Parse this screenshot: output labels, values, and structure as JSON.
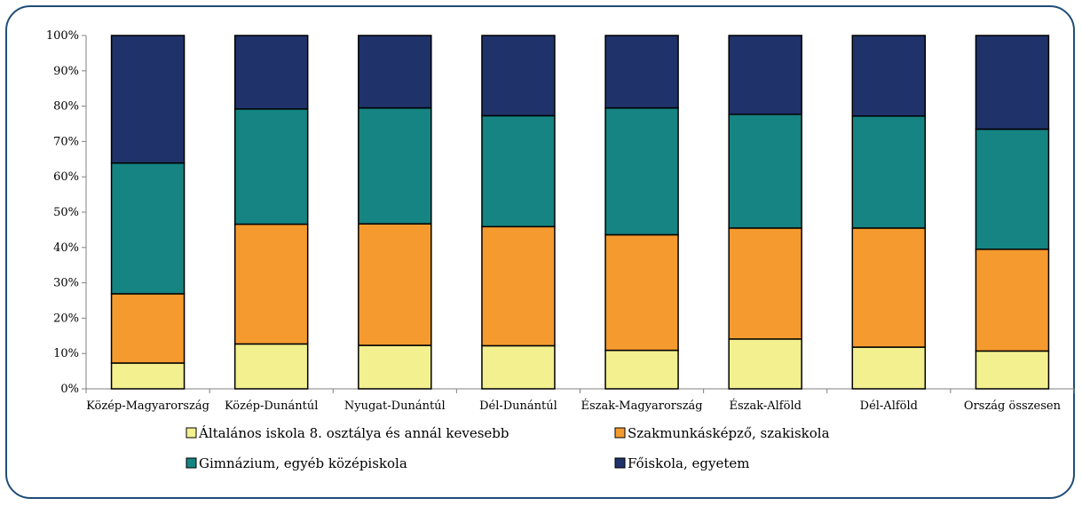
{
  "chart_data": {
    "type": "bar",
    "stacked": true,
    "categories": [
      "Közép-Magyarország",
      "Közép-Dunántúl",
      "Nyugat-Dunántúl",
      "Dél-Dunántúl",
      "Észak-Magyarország",
      "Észak-Alföld",
      "Dél-Alföld",
      "Ország összesen"
    ],
    "y_ticks": [
      "0%",
      "10%",
      "20%",
      "30%",
      "40%",
      "50%",
      "60%",
      "70%",
      "80%",
      "90%",
      "100%"
    ],
    "ylim": [
      0,
      100
    ],
    "grid": false,
    "legend_position": "bottom",
    "series": [
      {
        "name": "Általános iskola 8. osztálya és annál kevesebb",
        "color": "#f3f08f",
        "values": [
          7.3,
          12.7,
          12.3,
          12.2,
          10.9,
          14.1,
          11.8,
          10.7
        ]
      },
      {
        "name": "Szakmunkásképző, szakiskola",
        "color": "#f59a2f",
        "values": [
          19.6,
          33.9,
          34.4,
          33.7,
          32.7,
          31.4,
          33.7,
          28.8
        ]
      },
      {
        "name": "Gimnázium, egyéb középiskola",
        "color": "#158482",
        "values": [
          37.0,
          32.6,
          32.8,
          31.4,
          35.9,
          32.2,
          31.7,
          34.0
        ]
      },
      {
        "name": "Főiskola, egyetem",
        "color": "#1f336a",
        "values": [
          36.1,
          20.8,
          20.5,
          22.7,
          20.5,
          22.3,
          22.8,
          26.5
        ]
      }
    ]
  }
}
